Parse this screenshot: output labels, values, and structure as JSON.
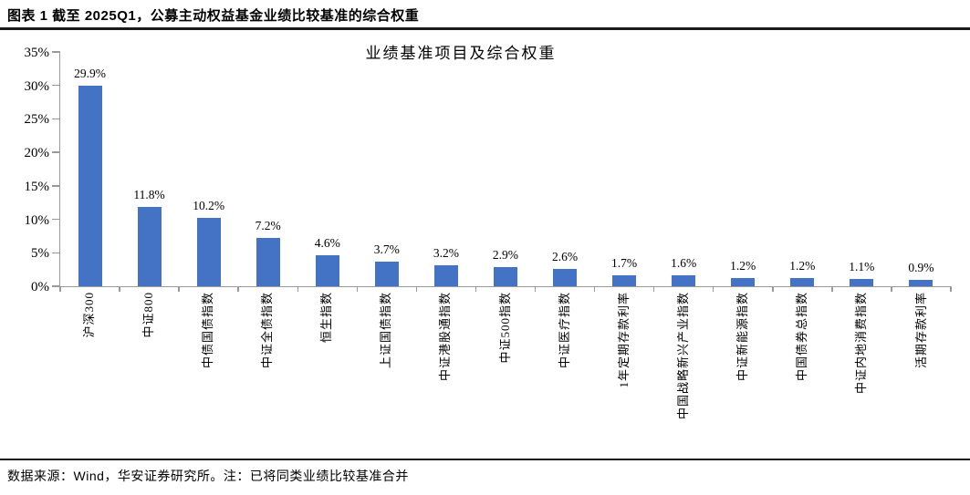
{
  "figure": {
    "title": "图表 1 截至 2025Q1，公募主动权益基金业绩比较基准的综合权重",
    "source_note": "数据来源：Wind，华安证券研究所。注：已将同类业绩比较基准合并"
  },
  "colors": {
    "bar": "#4472C4",
    "axis": "#999999",
    "text": "#000000",
    "divider": "#1a1a1a"
  },
  "chart_data": {
    "type": "bar",
    "title": "业绩基准项目及综合权重",
    "categories": [
      "沪深300",
      "中证800",
      "中债国债指数",
      "中证全债指数",
      "恒生指数",
      "上证国债指数",
      "中证港股通指数",
      "中证500指数",
      "中证医疗指数",
      "1年定期存款利率",
      "中国战略新兴产业指数",
      "中证新能源指数",
      "中国债券总指数",
      "中证内地消费指数",
      "活期存款利率"
    ],
    "values": [
      29.9,
      11.8,
      10.2,
      7.2,
      4.6,
      3.7,
      3.2,
      2.9,
      2.6,
      1.7,
      1.6,
      1.2,
      1.2,
      1.1,
      0.9
    ],
    "value_labels": [
      "29.9%",
      "11.8%",
      "10.2%",
      "7.2%",
      "4.6%",
      "3.7%",
      "3.2%",
      "2.9%",
      "2.6%",
      "1.7%",
      "1.6%",
      "1.2%",
      "1.2%",
      "1.1%",
      "0.9%"
    ],
    "xlabel": "",
    "ylabel": "",
    "ylim": [
      0,
      35
    ],
    "ytick_values": [
      0,
      5,
      10,
      15,
      20,
      25,
      30,
      35
    ],
    "ytick_labels": [
      "0%",
      "5%",
      "10%",
      "15%",
      "20%",
      "25%",
      "30%",
      "35%"
    ],
    "grid": false,
    "legend_position": "none",
    "x_label_rotation": -90
  }
}
